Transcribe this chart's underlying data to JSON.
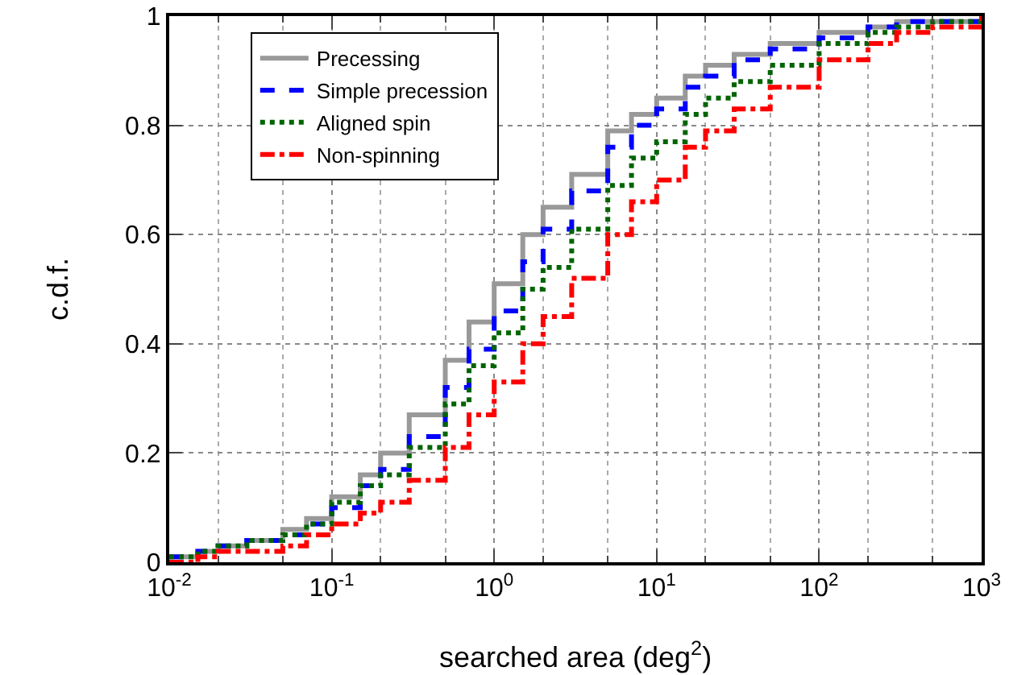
{
  "chart_data": {
    "type": "step",
    "xlabel": "searched area (deg$^{2}$)",
    "ylabel": "c.d.f.",
    "x": [
      0.01,
      0.015,
      0.02,
      0.03,
      0.05,
      0.07,
      0.1,
      0.15,
      0.2,
      0.3,
      0.5,
      0.7,
      1,
      1.5,
      2,
      3,
      5,
      7,
      10,
      15,
      20,
      30,
      50,
      100,
      200,
      300,
      500,
      1000
    ],
    "series": [
      {
        "name": "Precessing",
        "color": "#999999",
        "line_style": "solid",
        "values": [
          0.01,
          0.02,
          0.03,
          0.04,
          0.06,
          0.08,
          0.12,
          0.16,
          0.2,
          0.27,
          0.37,
          0.44,
          0.51,
          0.6,
          0.65,
          0.71,
          0.79,
          0.82,
          0.85,
          0.89,
          0.91,
          0.93,
          0.95,
          0.97,
          0.98,
          0.99,
          0.99,
          1
        ]
      },
      {
        "name": "Simple precession",
        "color": "#0000ff",
        "line_style": "dashed",
        "values": [
          0.01,
          0.02,
          0.03,
          0.04,
          0.05,
          0.07,
          0.1,
          0.14,
          0.17,
          0.23,
          0.32,
          0.39,
          0.46,
          0.55,
          0.61,
          0.68,
          0.76,
          0.8,
          0.83,
          0.87,
          0.89,
          0.92,
          0.94,
          0.96,
          0.98,
          0.99,
          0.99,
          1
        ]
      },
      {
        "name": "Aligned spin",
        "color": "#006400",
        "line_style": "dotted",
        "values": [
          0.01,
          0.02,
          0.03,
          0.04,
          0.05,
          0.07,
          0.11,
          0.14,
          0.16,
          0.21,
          0.29,
          0.36,
          0.42,
          0.5,
          0.54,
          0.61,
          0.69,
          0.74,
          0.77,
          0.82,
          0.85,
          0.88,
          0.91,
          0.95,
          0.97,
          0.98,
          0.99,
          1
        ]
      },
      {
        "name": "Non-spinning",
        "color": "#ff0000",
        "line_style": "dashdot",
        "values": [
          0,
          0.01,
          0.02,
          0.02,
          0.03,
          0.05,
          0.07,
          0.09,
          0.11,
          0.15,
          0.21,
          0.27,
          0.33,
          0.4,
          0.45,
          0.52,
          0.6,
          0.66,
          0.7,
          0.76,
          0.79,
          0.83,
          0.87,
          0.92,
          0.95,
          0.97,
          0.98,
          1
        ]
      }
    ],
    "log": "x",
    "xlim": [
      0.01,
      1000
    ],
    "xticks": [
      {
        "value": 0.01,
        "label": "10$^{-2}$"
      },
      {
        "value": 0.1,
        "label": "10$^{-1}$"
      },
      {
        "value": 1,
        "label": "10$^{0}$"
      },
      {
        "value": 10,
        "label": "10$^{1}$"
      },
      {
        "value": 100,
        "label": "10$^{2}$"
      },
      {
        "value": 1000,
        "label": "10$^{3}$"
      }
    ],
    "ylim": [
      0,
      1
    ],
    "yticks": [
      0,
      0.2,
      0.4,
      0.6,
      0.8,
      1
    ],
    "grid": true,
    "legend": "top left",
    "marker": "none"
  }
}
